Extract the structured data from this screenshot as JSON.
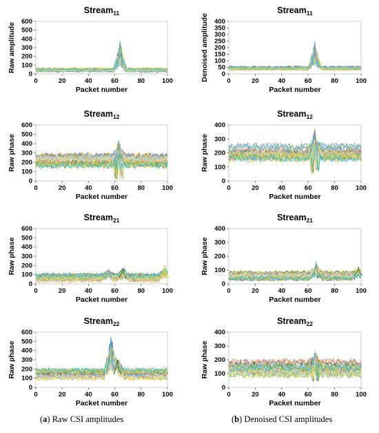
{
  "captions": {
    "a_letter": "a",
    "a_text": "Raw CSI amplitudes",
    "b_letter": "b",
    "b_text": "Denoised CSI amplitudes"
  },
  "chart_data": [
    {
      "type": "line",
      "column": "a",
      "title": "Stream",
      "title_sub": "11",
      "xlabel": "Packet number",
      "ylabel": "Raw amplitude",
      "xlim": [
        0,
        100
      ],
      "ylim": [
        0,
        600
      ],
      "xticks": [
        0,
        20,
        40,
        60,
        80,
        100
      ],
      "yticks": [
        0,
        100,
        200,
        300,
        400,
        500,
        600
      ],
      "grid": false,
      "series_count": 30,
      "baseline_range": [
        20,
        70
      ],
      "peaks": [
        {
          "x": 64,
          "max": 370
        }
      ]
    },
    {
      "type": "line",
      "column": "b",
      "title": "Stream",
      "title_sub": "11",
      "xlabel": "Packet number",
      "ylabel": "Denoised amplitude",
      "xlim": [
        0,
        100
      ],
      "ylim": [
        0,
        400
      ],
      "xticks": [
        0,
        20,
        40,
        60,
        80,
        100
      ],
      "yticks": [
        0,
        50,
        100,
        150,
        200,
        250,
        300,
        350,
        400
      ],
      "grid": false,
      "series_count": 30,
      "baseline_range": [
        25,
        60
      ],
      "peaks": [
        {
          "x": 65,
          "max": 245
        }
      ]
    },
    {
      "type": "line",
      "column": "a",
      "title": "Stream",
      "title_sub": "12",
      "xlabel": "Packet number",
      "ylabel": "Raw phase",
      "xlim": [
        0,
        100
      ],
      "ylim": [
        0,
        600
      ],
      "xticks": [
        0,
        20,
        40,
        60,
        80,
        100
      ],
      "yticks": [
        0,
        100,
        200,
        300,
        400,
        500,
        600
      ],
      "grid": false,
      "series_count": 30,
      "baseline_range": [
        130,
        300
      ],
      "peaks": [
        {
          "x": 63,
          "max": 430,
          "min": 10
        }
      ]
    },
    {
      "type": "line",
      "column": "b",
      "title": "Stream",
      "title_sub": "12",
      "xlabel": "Packet number",
      "ylabel": "Raw phase",
      "xlim": [
        0,
        100
      ],
      "ylim": [
        0,
        400
      ],
      "xticks": [
        0,
        20,
        40,
        60,
        80,
        100
      ],
      "yticks": [
        0,
        100,
        200,
        300,
        400
      ],
      "grid": false,
      "series_count": 30,
      "baseline_range": [
        130,
        270
      ],
      "peaks": [
        {
          "x": 65,
          "max": 355,
          "min": 50
        }
      ]
    },
    {
      "type": "line",
      "column": "a",
      "title": "Stream",
      "title_sub": "21",
      "xlabel": "Packet number",
      "ylabel": "Raw phase",
      "xlim": [
        0,
        100
      ],
      "ylim": [
        0,
        600
      ],
      "xticks": [
        0,
        20,
        40,
        60,
        80,
        100
      ],
      "yticks": [
        0,
        100,
        200,
        300,
        400,
        500,
        600
      ],
      "grid": false,
      "series_count": 30,
      "baseline_range": [
        10,
        120
      ],
      "peaks": [
        {
          "x": 55,
          "max": 150
        },
        {
          "x": 66,
          "max": 170
        },
        {
          "x": 98,
          "max": 185
        }
      ]
    },
    {
      "type": "line",
      "column": "b",
      "title": "Stream",
      "title_sub": "21",
      "xlabel": "Packet number",
      "ylabel": "Raw phase",
      "xlim": [
        0,
        100
      ],
      "ylim": [
        0,
        400
      ],
      "xticks": [
        0,
        20,
        40,
        60,
        80,
        100
      ],
      "yticks": [
        0,
        100,
        200,
        300,
        400
      ],
      "grid": false,
      "series_count": 30,
      "baseline_range": [
        20,
        100
      ],
      "peaks": [
        {
          "x": 66,
          "max": 150
        },
        {
          "x": 98,
          "max": 120
        }
      ]
    },
    {
      "type": "line",
      "column": "a",
      "title": "Stream",
      "title_sub": "22",
      "xlabel": "Packet number",
      "ylabel": "Raw phase",
      "xlim": [
        0,
        100
      ],
      "ylim": [
        0,
        600
      ],
      "xticks": [
        0,
        20,
        40,
        60,
        80,
        100
      ],
      "yticks": [
        0,
        100,
        200,
        300,
        400,
        500,
        600
      ],
      "grid": false,
      "series_count": 30,
      "baseline_range": [
        70,
        220
      ],
      "peaks": [
        {
          "x": 57,
          "max": 550
        },
        {
          "x": 62,
          "max": 300
        }
      ]
    },
    {
      "type": "line",
      "column": "b",
      "title": "Stream",
      "title_sub": "22",
      "xlabel": "Packet number",
      "ylabel": "Raw phase",
      "xlim": [
        0,
        100
      ],
      "ylim": [
        0,
        400
      ],
      "xticks": [
        0,
        20,
        40,
        60,
        80,
        100
      ],
      "yticks": [
        0,
        100,
        200,
        300,
        400
      ],
      "grid": false,
      "series_count": 30,
      "baseline_range": [
        60,
        210
      ],
      "peaks": [
        {
          "x": 65,
          "max": 250,
          "min": 40
        }
      ]
    }
  ],
  "colors": [
    "#4472c4",
    "#ed7d31",
    "#a5a5a5",
    "#ffc000",
    "#5b9bd5",
    "#70ad47",
    "#264478",
    "#9e480e",
    "#636363",
    "#997300",
    "#255e91",
    "#43682b",
    "#698ed0",
    "#f1975a",
    "#b7b7b7",
    "#ffcd33",
    "#7cafdd",
    "#8cc168",
    "#c9d83f",
    "#d8e860",
    "#b5c8ec",
    "#a9d18e",
    "#f4b183",
    "#8faadc",
    "#c5e0b4",
    "#ffe699",
    "#bdd7ee",
    "#dbdb8d",
    "#bcbd22",
    "#17becf"
  ]
}
